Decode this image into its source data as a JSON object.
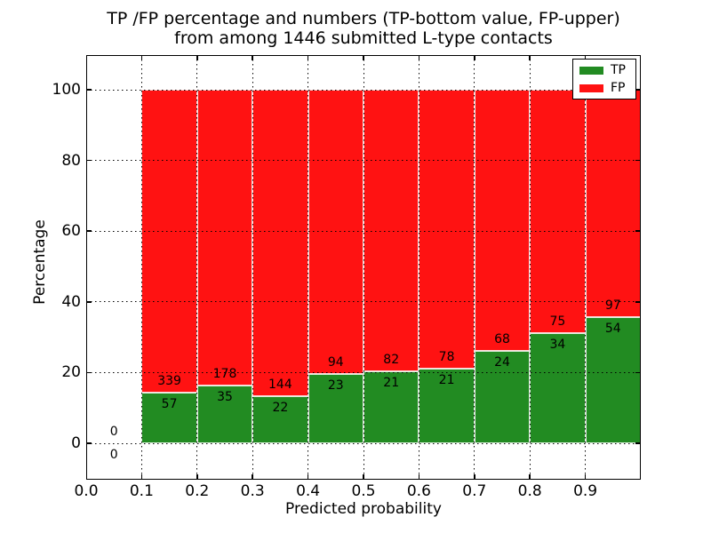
{
  "figure": {
    "title_line1": "TP /FP percentage and numbers (TP-bottom value, FP-upper)",
    "title_line2": "from among 1446 submitted L-type contacts"
  },
  "chart_data": {
    "type": "bar",
    "stacked": true,
    "title": "TP /FP percentage and numbers (TP-bottom value, FP-upper) from among 1446 submitted L-type contacts",
    "xlabel": "Predicted probability",
    "ylabel": "Percentage",
    "xlim": [
      0.0,
      1.0
    ],
    "ylim": [
      -10,
      110
    ],
    "xtick_values": [
      0.0,
      0.1,
      0.2,
      0.3,
      0.4,
      0.5,
      0.6,
      0.7,
      0.8,
      0.9
    ],
    "xtick_labels": [
      "0.0",
      "0.1",
      "0.2",
      "0.3",
      "0.4",
      "0.5",
      "0.6",
      "0.7",
      "0.8",
      "0.9"
    ],
    "ytick_values": [
      0,
      20,
      40,
      60,
      80,
      100
    ],
    "ytick_labels": [
      "0",
      "20",
      "40",
      "60",
      "80",
      "100"
    ],
    "grid": true,
    "grid_style": "dotted",
    "background_color": "#ffffff",
    "total_contacts": 1446,
    "colors": {
      "tp": "#228b22",
      "fp": "#ff1212",
      "text": "#000000"
    },
    "legend": {
      "position": "upper right",
      "entries": [
        {
          "label": "TP",
          "color": "#228b22"
        },
        {
          "label": "FP",
          "color": "#ff1212"
        }
      ]
    },
    "bins": [
      {
        "range": [
          0.0,
          0.1
        ],
        "tp": 0,
        "fp": 0,
        "tp_pct": 0.0
      },
      {
        "range": [
          0.1,
          0.2
        ],
        "tp": 57,
        "fp": 339,
        "tp_pct": 14.4
      },
      {
        "range": [
          0.2,
          0.3
        ],
        "tp": 35,
        "fp": 178,
        "tp_pct": 16.4
      },
      {
        "range": [
          0.3,
          0.4
        ],
        "tp": 22,
        "fp": 144,
        "tp_pct": 13.3
      },
      {
        "range": [
          0.4,
          0.5
        ],
        "tp": 23,
        "fp": 94,
        "tp_pct": 19.7
      },
      {
        "range": [
          0.5,
          0.6
        ],
        "tp": 21,
        "fp": 82,
        "tp_pct": 20.4
      },
      {
        "range": [
          0.6,
          0.7
        ],
        "tp": 21,
        "fp": 78,
        "tp_pct": 21.2
      },
      {
        "range": [
          0.7,
          0.8
        ],
        "tp": 24,
        "fp": 68,
        "tp_pct": 26.1
      },
      {
        "range": [
          0.8,
          0.9
        ],
        "tp": 34,
        "fp": 75,
        "tp_pct": 31.2
      },
      {
        "range": [
          0.9,
          1.0
        ],
        "tp": 54,
        "fp": 97,
        "tp_pct": 35.8
      }
    ]
  }
}
